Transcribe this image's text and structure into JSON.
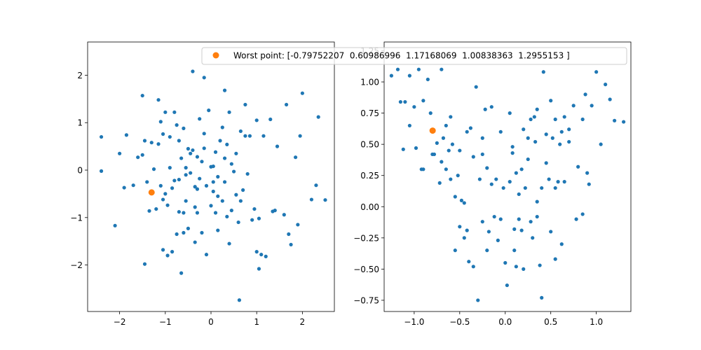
{
  "colors": {
    "points": "#1f77b4",
    "worst": "#ff7f0e",
    "axis": "#000000",
    "legend_border": "#cccccc"
  },
  "legend": {
    "label": "Worst point: [-0.79752207  0.60986996  1.17168069  1.00838363  1.2955153 ]",
    "placement": "top-right"
  },
  "chart_data": [
    {
      "type": "scatter",
      "title": "",
      "xlabel": "",
      "ylabel": "",
      "xlim": [
        -2.7,
        2.7
      ],
      "ylim": [
        -2.98,
        2.7
      ],
      "xticks": [
        -2,
        -1,
        0,
        1,
        2
      ],
      "xtick_labels": [
        "−2",
        "−1",
        "0",
        "1",
        "2"
      ],
      "yticks": [
        -2,
        -1,
        0,
        1,
        2
      ],
      "ytick_labels": [
        "−2",
        "−1",
        "0",
        "1",
        "2"
      ],
      "grid": false,
      "series": [
        {
          "points": [
            [
              -2.4,
              0.7
            ],
            [
              -2.4,
              -0.02
            ],
            [
              -2.1,
              -1.17
            ],
            [
              -2.0,
              0.35
            ],
            [
              -1.9,
              -0.37
            ],
            [
              -1.85,
              0.74
            ],
            [
              -1.7,
              -0.32
            ],
            [
              -1.5,
              1.57
            ],
            [
              -1.5,
              0.32
            ],
            [
              -1.45,
              -1.98
            ],
            [
              -1.45,
              0.62
            ],
            [
              -1.4,
              -0.25
            ],
            [
              -1.35,
              -0.86
            ],
            [
              -1.3,
              0.58
            ],
            [
              -1.2,
              -0.82
            ],
            [
              -1.15,
              0.55
            ],
            [
              -1.15,
              1.48
            ],
            [
              -1.1,
              -0.33
            ],
            [
              -1.1,
              1.02
            ],
            [
              -1.05,
              0.76
            ],
            [
              -1.05,
              -1.68
            ],
            [
              -1.0,
              -0.5
            ],
            [
              -1.0,
              1.22
            ],
            [
              -0.95,
              -1.8
            ],
            [
              -0.95,
              -0.74
            ],
            [
              -0.9,
              0.7
            ],
            [
              -0.9,
              0.05
            ],
            [
              -0.85,
              -1.72
            ],
            [
              -0.8,
              1.22
            ],
            [
              -0.8,
              -0.22
            ],
            [
              -0.75,
              0.95
            ],
            [
              -0.7,
              -0.88
            ],
            [
              -0.7,
              -0.2
            ],
            [
              -0.7,
              0.62
            ],
            [
              -0.65,
              -2.17
            ],
            [
              -0.65,
              0.25
            ],
            [
              -0.6,
              -1.32
            ],
            [
              -0.6,
              -0.9
            ],
            [
              -0.55,
              0.05
            ],
            [
              -0.55,
              -0.65
            ],
            [
              -0.5,
              0.45
            ],
            [
              -0.5,
              -1.23
            ],
            [
              -0.45,
              0.35
            ],
            [
              -0.45,
              -0.06
            ],
            [
              -0.4,
              2.08
            ],
            [
              -0.4,
              0.42
            ],
            [
              -0.35,
              -0.78
            ],
            [
              -0.35,
              -1.52
            ],
            [
              -0.3,
              -0.4
            ],
            [
              -0.3,
              0.28
            ],
            [
              -0.25,
              1.08
            ],
            [
              -0.25,
              -0.18
            ],
            [
              -0.2,
              -1.32
            ],
            [
              -0.15,
              1.95
            ],
            [
              -0.15,
              0.77
            ],
            [
              -0.1,
              -1.78
            ],
            [
              -0.1,
              -0.33
            ],
            [
              -0.05,
              1.26
            ],
            [
              0.0,
              -0.75
            ],
            [
              0.0,
              0.07
            ],
            [
              0.05,
              0.08
            ],
            [
              0.05,
              -0.45
            ],
            [
              0.1,
              -0.9
            ],
            [
              0.1,
              0.38
            ],
            [
              0.15,
              -1.27
            ],
            [
              0.15,
              -0.14
            ],
            [
              0.2,
              0.62
            ],
            [
              0.25,
              -0.65
            ],
            [
              0.25,
              0.9
            ],
            [
              0.3,
              1.68
            ],
            [
              0.3,
              -0.25
            ],
            [
              0.35,
              -0.98
            ],
            [
              0.35,
              0.54
            ],
            [
              0.4,
              -1.55
            ],
            [
              0.4,
              1.22
            ],
            [
              0.45,
              0.13
            ],
            [
              0.5,
              -0.03
            ],
            [
              0.55,
              -0.52
            ],
            [
              0.6,
              -1.1
            ],
            [
              0.62,
              -2.74
            ],
            [
              0.65,
              0.82
            ],
            [
              0.7,
              -0.42
            ],
            [
              0.75,
              1.38
            ],
            [
              0.8,
              -0.08
            ],
            [
              0.85,
              0.72
            ],
            [
              0.9,
              -1.05
            ],
            [
              0.95,
              -0.82
            ],
            [
              1.0,
              1.05
            ],
            [
              1.05,
              -1.02
            ],
            [
              1.05,
              -2.08
            ],
            [
              1.1,
              -1.78
            ],
            [
              1.15,
              0.72
            ],
            [
              1.2,
              -1.82
            ],
            [
              1.3,
              1.07
            ],
            [
              1.35,
              -0.87
            ],
            [
              1.4,
              -0.85
            ],
            [
              1.45,
              0.5
            ],
            [
              1.6,
              -0.94
            ],
            [
              1.65,
              1.38
            ],
            [
              1.7,
              -1.35
            ],
            [
              1.75,
              -1.57
            ],
            [
              1.85,
              0.27
            ],
            [
              1.9,
              -1.15
            ],
            [
              1.95,
              0.72
            ],
            [
              2.0,
              1.62
            ],
            [
              2.2,
              -0.62
            ],
            [
              2.3,
              -0.32
            ],
            [
              2.35,
              1.12
            ],
            [
              2.5,
              -0.63
            ],
            [
              -1.6,
              0.27
            ],
            [
              -1.05,
              -0.62
            ],
            [
              -0.85,
              -0.38
            ],
            [
              -0.6,
              0.88
            ],
            [
              -0.55,
              -0.1
            ],
            [
              -0.15,
              0.46
            ],
            [
              0.05,
              -0.25
            ],
            [
              0.3,
              0.25
            ],
            [
              0.55,
              0.35
            ],
            [
              0.75,
              0.72
            ],
            [
              -0.3,
              -0.9
            ],
            [
              0.15,
              -0.55
            ],
            [
              0.45,
              -0.85
            ],
            [
              -0.75,
              -1.35
            ],
            [
              -0.2,
              0.18
            ],
            [
              0.65,
              -0.65
            ],
            [
              1.0,
              -1.72
            ],
            [
              -1.25,
              0.02
            ],
            [
              -0.35,
              -0.35
            ]
          ]
        }
      ],
      "worst_point": [
        -1.3,
        -0.47
      ]
    },
    {
      "type": "scatter",
      "title": "",
      "xlabel": "",
      "ylabel": "",
      "xlim": [
        -1.33,
        1.38
      ],
      "ylim": [
        -0.84,
        1.32
      ],
      "xticks": [
        -1.0,
        -0.5,
        0.0,
        0.5,
        1.0
      ],
      "xtick_labels": [
        "−1.0",
        "−0.5",
        "0.0",
        "0.5",
        "1.0"
      ],
      "yticks": [
        -0.75,
        -0.5,
        -0.25,
        0.0,
        0.25,
        0.5,
        0.75,
        1.0,
        1.25
      ],
      "ytick_labels": [
        "−0.75",
        "−0.50",
        "−0.25",
        "0.00",
        "0.25",
        "0.50",
        "0.75",
        "1.00",
        "1.25"
      ],
      "grid": false,
      "series": [
        {
          "points": [
            [
              -1.25,
              1.05
            ],
            [
              -1.18,
              1.1
            ],
            [
              -1.15,
              0.84
            ],
            [
              -1.12,
              0.46
            ],
            [
              -1.1,
              0.84
            ],
            [
              -1.05,
              1.05
            ],
            [
              -1.0,
              0.8
            ],
            [
              -0.98,
              0.47
            ],
            [
              -0.95,
              1.1
            ],
            [
              -0.92,
              0.3
            ],
            [
              -0.9,
              0.85
            ],
            [
              -0.85,
              1.02
            ],
            [
              -0.82,
              0.75
            ],
            [
              -0.8,
              0.42
            ],
            [
              -0.75,
              0.51
            ],
            [
              -0.72,
              0.19
            ],
            [
              -0.7,
              0.36
            ],
            [
              -0.68,
              0.55
            ],
            [
              -0.65,
              0.3
            ],
            [
              -0.62,
              0.45
            ],
            [
              -0.6,
              0.22
            ],
            [
              -0.58,
              0.5
            ],
            [
              -0.55,
              0.08
            ],
            [
              -0.52,
              0.25
            ],
            [
              -0.5,
              -0.16
            ],
            [
              -0.48,
              0.05
            ],
            [
              -0.45,
              0.03
            ],
            [
              -0.42,
              -0.19
            ],
            [
              -0.4,
              -0.44
            ],
            [
              -0.38,
              0.63
            ],
            [
              -0.35,
              -0.48
            ],
            [
              -0.32,
              0.96
            ],
            [
              -0.3,
              -0.75
            ],
            [
              -0.28,
              0.22
            ],
            [
              -0.25,
              -0.12
            ],
            [
              -0.22,
              0.78
            ],
            [
              -0.2,
              0.31
            ],
            [
              -0.18,
              -0.2
            ],
            [
              -0.15,
              0.8
            ],
            [
              -0.12,
              -0.08
            ],
            [
              -0.1,
              0.22
            ],
            [
              -0.08,
              -0.27
            ],
            [
              -0.05,
              0.6
            ],
            [
              -0.02,
              0.15
            ],
            [
              0.0,
              -0.45
            ],
            [
              0.02,
              -0.63
            ],
            [
              0.05,
              0.2
            ],
            [
              0.08,
              0.43
            ],
            [
              0.1,
              -0.35
            ],
            [
              0.12,
              0.27
            ],
            [
              0.15,
              -0.1
            ],
            [
              0.18,
              -0.19
            ],
            [
              0.2,
              -0.5
            ],
            [
              0.22,
              0.15
            ],
            [
              0.25,
              0.38
            ],
            [
              0.28,
              -0.12
            ],
            [
              0.3,
              -0.25
            ],
            [
              0.33,
              0.52
            ],
            [
              0.35,
              0.04
            ],
            [
              0.38,
              -0.47
            ],
            [
              0.4,
              -0.73
            ],
            [
              0.42,
              1.08
            ],
            [
              0.45,
              0.58
            ],
            [
              0.48,
              0.22
            ],
            [
              0.5,
              -0.2
            ],
            [
              0.52,
              0.55
            ],
            [
              0.55,
              -0.42
            ],
            [
              0.58,
              0.2
            ],
            [
              0.6,
              0.5
            ],
            [
              0.62,
              0.6
            ],
            [
              0.65,
              0.72
            ],
            [
              0.7,
              0.62
            ],
            [
              0.75,
              0.81
            ],
            [
              0.78,
              -0.1
            ],
            [
              0.8,
              0.32
            ],
            [
              0.85,
              -0.06
            ],
            [
              0.88,
              0.9
            ],
            [
              0.9,
              0.27
            ],
            [
              0.92,
              0.18
            ],
            [
              0.95,
              0.81
            ],
            [
              1.0,
              1.08
            ],
            [
              1.05,
              0.5
            ],
            [
              1.1,
              0.98
            ],
            [
              1.15,
              0.86
            ],
            [
              1.2,
              0.69
            ],
            [
              1.3,
              0.68
            ],
            [
              -1.05,
              0.65
            ],
            [
              -0.9,
              0.3
            ],
            [
              -0.78,
              0.42
            ],
            [
              -0.65,
              0.65
            ],
            [
              -0.55,
              -0.35
            ],
            [
              -0.45,
              -0.25
            ],
            [
              -0.35,
              0.4
            ],
            [
              -0.25,
              0.55
            ],
            [
              -0.15,
              0.18
            ],
            [
              0.05,
              0.75
            ],
            [
              0.15,
              0.1
            ],
            [
              0.25,
              0.55
            ],
            [
              0.35,
              -0.08
            ],
            [
              0.45,
              0.35
            ],
            [
              0.55,
              0.7
            ],
            [
              0.65,
              0.2
            ],
            [
              -0.7,
              1.1
            ],
            [
              -0.6,
              0.72
            ],
            [
              -0.42,
              0.6
            ],
            [
              -0.25,
              0.42
            ],
            [
              0.08,
              0.48
            ],
            [
              0.2,
              0.62
            ],
            [
              0.32,
              0.72
            ],
            [
              0.5,
              0.85
            ],
            [
              0.62,
              -0.3
            ],
            [
              0.7,
              0.52
            ],
            [
              0.85,
              0.7
            ],
            [
              -0.5,
              0.45
            ],
            [
              -0.2,
              -0.35
            ],
            [
              0.1,
              -0.18
            ],
            [
              0.35,
              0.78
            ],
            [
              0.12,
              -0.48
            ],
            [
              0.28,
              0.7
            ],
            [
              0.4,
              0.15
            ],
            [
              -0.05,
              -0.1
            ],
            [
              0.18,
              0.3
            ],
            [
              0.55,
              0.15
            ]
          ]
        }
      ],
      "worst_point": [
        -0.79752207,
        0.60986996
      ]
    }
  ]
}
